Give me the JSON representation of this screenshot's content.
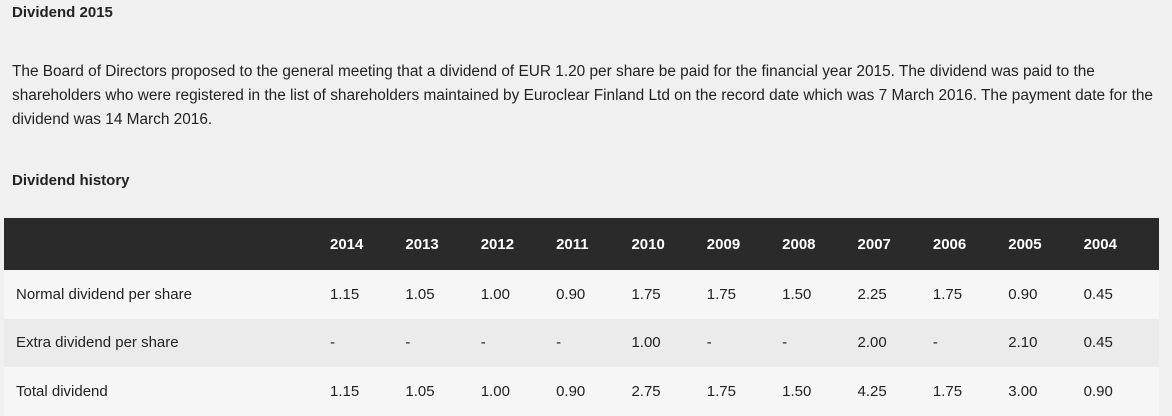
{
  "header": {
    "title": "Dividend 2015"
  },
  "paragraph": "The Board of Directors proposed to the general meeting that a dividend of EUR 1.20 per share be paid for the financial year 2015. The dividend was paid to the shareholders who were registered in the list of shareholders maintained by Euroclear Finland Ltd on the record date which was 7 March 2016. The payment date for the dividend was 14 March 2016.",
  "section_title": "Dividend history",
  "table": {
    "columns": [
      "2014",
      "2013",
      "2012",
      "2011",
      "2010",
      "2009",
      "2008",
      "2007",
      "2006",
      "2005",
      "2004"
    ],
    "rows": [
      [
        "Normal dividend per share",
        "1.15",
        "1.05",
        "1.00",
        "0.90",
        "1.75",
        "1.75",
        "1.50",
        "2.25",
        "1.75",
        "0.90",
        "0.45"
      ],
      [
        "Extra dividend per share",
        "-",
        "-",
        "-",
        "-",
        "1.00",
        "-",
        "-",
        "2.00",
        "-",
        "2.10",
        "0.45"
      ],
      [
        "Total dividend",
        "1.15",
        "1.05",
        "1.00",
        "0.90",
        "2.75",
        "1.75",
        "1.50",
        "4.25",
        "1.75",
        "3.00",
        "0.90"
      ]
    ]
  }
}
